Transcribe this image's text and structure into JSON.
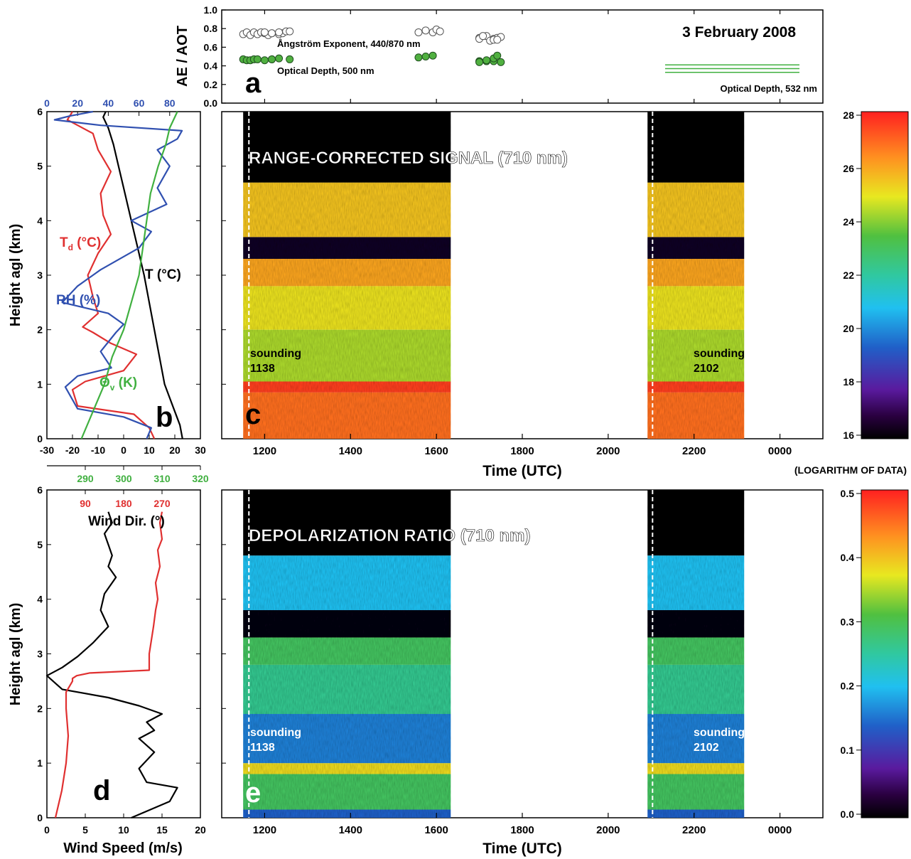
{
  "date_label": "3 February 2008",
  "chart_data": [
    {
      "panel": "a",
      "type": "scatter",
      "ylabel": "AE / AOT",
      "ylim": [
        0,
        1.0
      ],
      "y_ticks": [
        "0.0",
        "0.2",
        "0.4",
        "0.6",
        "0.8",
        "1.0"
      ],
      "x_unit": "UTC hhmm",
      "series": [
        {
          "name": "Ångström Exponent, 440/870 nm",
          "marker": "open",
          "x": [
            1130,
            1135,
            1140,
            1145,
            1150,
            1155,
            1160,
            1165,
            1170,
            1180,
            1185,
            1190,
            1200,
            1210,
            1220,
            1235,
            1535,
            1545,
            1555,
            1560,
            1565,
            1660,
            1670,
            1680,
            1685,
            1690,
            1700,
            1705,
            1715,
            1720,
            1725
          ],
          "y": [
            0.74,
            0.76,
            0.73,
            0.76,
            0.74,
            0.76,
            0.75,
            0.73,
            0.75,
            0.74,
            0.75,
            0.77,
            0.76,
            0.75,
            0.76,
            0.77,
            0.76,
            0.78,
            0.76,
            0.79,
            0.77,
            0.7,
            0.72,
            0.69,
            0.7,
            0.71,
            0.69,
            0.72,
            0.67,
            0.68,
            0.68
          ]
        },
        {
          "name": "Optical Depth, 500 nm",
          "marker": "filled",
          "x": [
            1130,
            1135,
            1140,
            1145,
            1150,
            1160,
            1170,
            1180,
            1195,
            1210,
            1535,
            1545,
            1555,
            1660,
            1670,
            1680,
            1690,
            1700,
            1710,
            1720,
            1725
          ],
          "y": [
            0.47,
            0.46,
            0.46,
            0.47,
            0.47,
            0.46,
            0.47,
            0.48,
            0.47,
            0.47,
            0.49,
            0.5,
            0.51,
            0.45,
            0.45,
            0.45,
            0.44,
            0.44,
            0.46,
            0.48,
            0.51
          ]
        },
        {
          "name": "Optical Depth, 532 nm",
          "marker": "line",
          "levels": [
            0.33,
            0.37,
            0.41
          ]
        }
      ],
      "annotations": [
        "a"
      ]
    },
    {
      "panel": "b",
      "type": "line",
      "ylabel": "Height agl (km)",
      "ylim": [
        0,
        6
      ],
      "y_ticks": [
        "0",
        "1",
        "2",
        "3",
        "4",
        "5",
        "6"
      ],
      "bottom_axis_ticks": [
        "-30",
        "-20",
        "-10",
        "0",
        "10",
        "20",
        "30"
      ],
      "top_axis_ticks": [
        "0",
        "20",
        "40",
        "60",
        "80"
      ],
      "lower_axis_ticks": [
        "290",
        "300",
        "310",
        "320"
      ],
      "series": [
        {
          "name": "T (°C)",
          "x_axis": "bottom",
          "x": [
            23,
            22,
            20,
            18,
            16,
            14,
            12,
            10,
            8,
            6,
            4,
            2,
            0,
            -2,
            -4,
            -6,
            -8,
            -7
          ],
          "y": [
            0,
            0.25,
            0.5,
            0.75,
            1,
            1.5,
            2,
            2.5,
            3,
            3.4,
            3.8,
            4.2,
            4.6,
            5,
            5.4,
            5.7,
            5.9,
            6
          ]
        },
        {
          "name": "Td (°C)",
          "x_axis": "bottom",
          "x": [
            12,
            10,
            4,
            -18,
            -20,
            -15,
            0,
            5,
            -5,
            -12,
            -16,
            -10,
            -12,
            -14,
            -10,
            -5,
            -8,
            -9,
            -5,
            -10,
            -12,
            -18,
            -22,
            -20
          ],
          "y": [
            0,
            0.2,
            0.45,
            0.6,
            0.9,
            1.05,
            1.25,
            1.55,
            1.75,
            1.95,
            2.05,
            2.3,
            2.6,
            3.0,
            3.4,
            3.75,
            4.1,
            4.5,
            4.9,
            5.3,
            5.6,
            5.75,
            5.85,
            6
          ]
        },
        {
          "name": "RH (%)",
          "x_axis": "top",
          "x": [
            65,
            68,
            50,
            20,
            12,
            20,
            42,
            35,
            45,
            50,
            40,
            10,
            20,
            35,
            60,
            68,
            55,
            78,
            72,
            80,
            72,
            85,
            88,
            35,
            5,
            15,
            30
          ],
          "y": [
            0,
            0.2,
            0.4,
            0.55,
            0.95,
            1.15,
            1.3,
            1.6,
            1.95,
            2.1,
            2.3,
            2.5,
            2.8,
            3.1,
            3.5,
            3.8,
            4.0,
            4.3,
            4.6,
            5.0,
            5.3,
            5.5,
            5.65,
            5.75,
            5.85,
            5.92,
            6
          ]
        },
        {
          "name": "Θv (K)",
          "x_axis": "lower",
          "x": [
            289,
            292,
            295,
            297,
            300,
            302,
            304,
            305,
            306,
            307,
            309,
            311,
            312,
            314
          ],
          "y": [
            0,
            0.5,
            1,
            1.5,
            2,
            2.5,
            3,
            3.5,
            4,
            4.5,
            5,
            5.4,
            5.7,
            6
          ]
        }
      ],
      "annotations": [
        "b"
      ]
    },
    {
      "panel": "c",
      "type": "heatmap",
      "title": "RANGE-CORRECTED SIGNAL (710 nm)",
      "xlabel": "Time (UTC)",
      "x_ticks": [
        "1200",
        "1400",
        "1600",
        "1800",
        "2000",
        "2200",
        "0000"
      ],
      "ylim": [
        0,
        6
      ],
      "colorbar_ticks": [
        "16",
        "18",
        "20",
        "22",
        "24",
        "26",
        "28"
      ],
      "colorbar_label": "(LOGARITHM OF DATA)",
      "layers": [
        {
          "bottom_km": 0.0,
          "top_km": 0.85,
          "value": 26.8
        },
        {
          "bottom_km": 0.85,
          "top_km": 1.05,
          "value": 27.5
        },
        {
          "bottom_km": 1.05,
          "top_km": 2.0,
          "value": 24.3
        },
        {
          "bottom_km": 2.0,
          "top_km": 2.8,
          "value": 25.0
        },
        {
          "bottom_km": 2.8,
          "top_km": 3.3,
          "value": 26.0
        },
        {
          "bottom_km": 3.3,
          "top_km": 3.7,
          "value": 16.5
        },
        {
          "bottom_km": 3.7,
          "top_km": 4.7,
          "value": 25.5
        },
        {
          "bottom_km": 4.7,
          "top_km": 5.7,
          "value": 16.0
        },
        {
          "bottom_km": 5.7,
          "top_km": 6.0,
          "value": 16.0
        }
      ],
      "soundings": [
        {
          "label": "sounding",
          "time": "1138"
        },
        {
          "label": "sounding",
          "time": "2102"
        }
      ],
      "annotations": [
        "c"
      ]
    },
    {
      "panel": "d",
      "type": "line",
      "ylabel": "Height agl (km)",
      "ylim": [
        0,
        6
      ],
      "y_ticks": [
        "0",
        "1",
        "2",
        "3",
        "4",
        "5",
        "6"
      ],
      "xlabel": "Wind Speed (m/s)",
      "x_ticks": [
        "0",
        "5",
        "10",
        "15",
        "20"
      ],
      "top_axis_label": "Wind Dir. (°)",
      "top_axis_ticks": [
        "90",
        "180",
        "270"
      ],
      "series": [
        {
          "name": "Wind Speed (m/s)",
          "x": [
            11,
            16,
            17,
            13,
            12,
            14,
            12,
            14,
            13,
            15,
            12,
            8,
            2,
            0,
            2,
            4,
            6,
            8,
            7,
            7.5,
            9,
            8,
            8.5,
            8,
            7.5,
            8.5,
            8
          ],
          "y": [
            0,
            0.3,
            0.55,
            0.65,
            0.9,
            1.2,
            1.45,
            1.6,
            1.75,
            1.9,
            2.05,
            2.2,
            2.35,
            2.6,
            2.75,
            2.95,
            3.2,
            3.5,
            3.8,
            4.1,
            4.4,
            4.6,
            4.8,
            5.0,
            5.2,
            5.4,
            5.6
          ]
        },
        {
          "name": "Wind Dir. (°)",
          "x": [
            20,
            35,
            45,
            50,
            45,
            45,
            60,
            60,
            70,
            100,
            240,
            240,
            250,
            255,
            260,
            255,
            265,
            260,
            270,
            265,
            270
          ],
          "y": [
            0,
            0.5,
            1.0,
            1.5,
            2.0,
            2.3,
            2.5,
            2.55,
            2.6,
            2.65,
            2.7,
            3.0,
            3.5,
            3.8,
            4.0,
            4.3,
            4.6,
            4.9,
            5.1,
            5.4,
            5.6
          ]
        }
      ],
      "annotations": [
        "d"
      ]
    },
    {
      "panel": "e",
      "type": "heatmap",
      "title": "DEPOLARIZATION RATIO (710 nm)",
      "xlabel": "Time (UTC)",
      "x_ticks": [
        "1200",
        "1400",
        "1600",
        "1800",
        "2000",
        "2200",
        "0000"
      ],
      "ylim": [
        0,
        6
      ],
      "colorbar_ticks": [
        "0.0",
        "0.1",
        "0.2",
        "0.3",
        "0.4",
        "0.5"
      ],
      "layers": [
        {
          "bottom_km": 0.0,
          "top_km": 0.15,
          "value": 0.14
        },
        {
          "bottom_km": 0.15,
          "top_km": 0.8,
          "value": 0.29
        },
        {
          "bottom_km": 0.8,
          "top_km": 1.0,
          "value": 0.38
        },
        {
          "bottom_km": 1.0,
          "top_km": 1.9,
          "value": 0.16
        },
        {
          "bottom_km": 1.9,
          "top_km": 2.8,
          "value": 0.26
        },
        {
          "bottom_km": 2.8,
          "top_km": 3.3,
          "value": 0.29
        },
        {
          "bottom_km": 3.3,
          "top_km": 3.8,
          "value": 0.01
        },
        {
          "bottom_km": 3.8,
          "top_km": 4.8,
          "value": 0.2
        },
        {
          "bottom_km": 4.8,
          "top_km": 6.0,
          "value": 0.0
        }
      ],
      "soundings": [
        {
          "label": "sounding",
          "time": "1138"
        },
        {
          "label": "sounding",
          "time": "2102"
        }
      ],
      "annotations": [
        "e"
      ]
    }
  ]
}
